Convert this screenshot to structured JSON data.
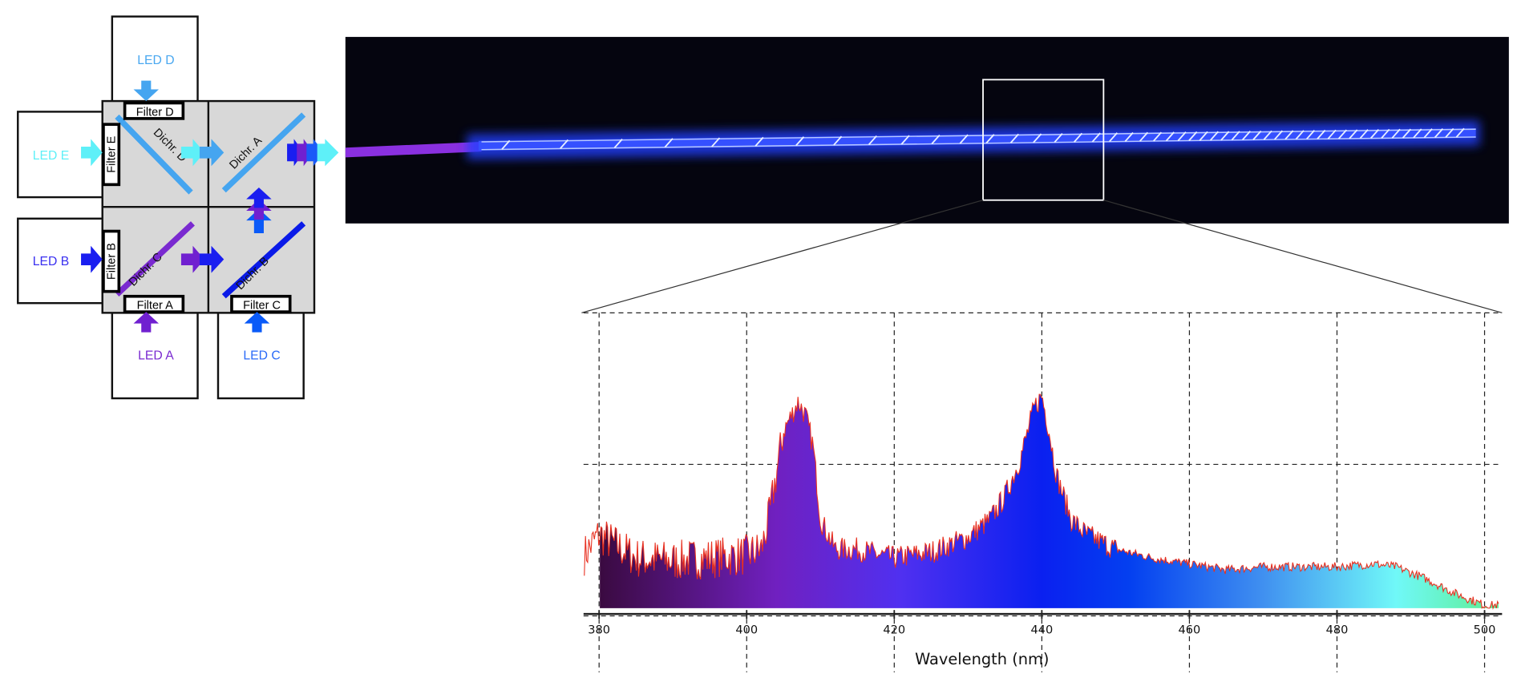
{
  "diagram": {
    "leds": [
      {
        "id": "D",
        "label": "LED D",
        "color": "#4aa8f0"
      },
      {
        "id": "E",
        "label": "LED E",
        "color": "#5ef0f8"
      },
      {
        "id": "B",
        "label": "LED B",
        "color": "#3a30f0"
      },
      {
        "id": "A",
        "label": "LED A",
        "color": "#7a2ad0"
      },
      {
        "id": "C",
        "label": "LED C",
        "color": "#2a6af8"
      }
    ],
    "filters": [
      "Filter D",
      "Filter E",
      "Filter B",
      "Filter A",
      "Filter C"
    ],
    "dichroics": [
      {
        "label": "Dichr. D",
        "color": "#45a5f0"
      },
      {
        "label": "Dichr. A",
        "color": "#45a5f0"
      },
      {
        "label": "Dichr. C",
        "color": "#7a2ad0"
      },
      {
        "label": "Dichr. B",
        "color": "#0a1ae8"
      }
    ]
  },
  "chart_data": {
    "type": "area",
    "title": "",
    "xlabel": "Wavelength (nm)",
    "ylabel": "",
    "xlim": [
      378,
      502
    ],
    "xticks": [
      380,
      400,
      420,
      440,
      460,
      480,
      500
    ],
    "grid": true,
    "y_units": "relative intensity (unlabeled)",
    "fill": "spectral gradient",
    "outline_color": "#e83020",
    "x": [
      378,
      380,
      385,
      390,
      395,
      400,
      402,
      403,
      405,
      407,
      408,
      409,
      410,
      412,
      415,
      418,
      420,
      425,
      430,
      433,
      435,
      437,
      439,
      440,
      441,
      442,
      444,
      446,
      450,
      455,
      460,
      465,
      470,
      475,
      480,
      485,
      488,
      492,
      496,
      500,
      502
    ],
    "y": [
      0.18,
      0.25,
      0.17,
      0.16,
      0.17,
      0.18,
      0.2,
      0.3,
      0.6,
      0.7,
      0.65,
      0.55,
      0.3,
      0.2,
      0.2,
      0.18,
      0.17,
      0.19,
      0.24,
      0.3,
      0.38,
      0.5,
      0.68,
      0.72,
      0.6,
      0.45,
      0.3,
      0.25,
      0.2,
      0.17,
      0.15,
      0.13,
      0.14,
      0.14,
      0.14,
      0.15,
      0.14,
      0.1,
      0.05,
      0.01,
      0.01
    ]
  }
}
